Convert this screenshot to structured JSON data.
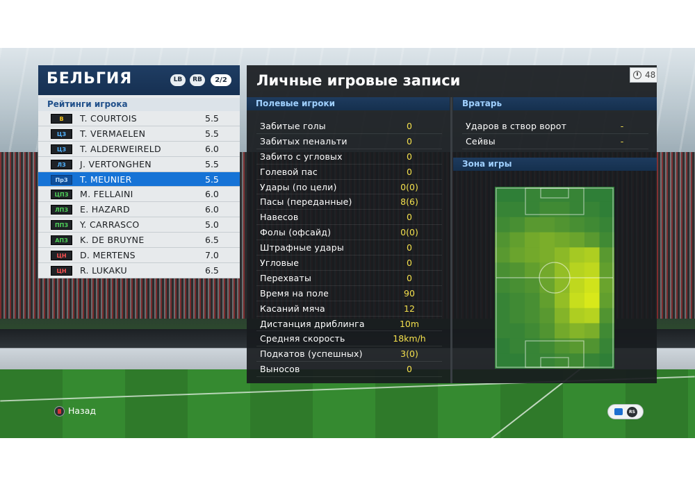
{
  "team": {
    "name": "БЕЛЬГИЯ",
    "lb_label": "LB",
    "rb_label": "RB",
    "page_indicator": "2/2"
  },
  "ratings": {
    "title": "Рейтинги игрока",
    "selected_index": 4,
    "players": [
      {
        "position": "В",
        "position_group": "gk",
        "name": "T. COURTOIS",
        "rating": "5.5"
      },
      {
        "position": "ЦЗ",
        "position_group": "def",
        "name": "T. VERMAELEN",
        "rating": "5.5"
      },
      {
        "position": "ЦЗ",
        "position_group": "def",
        "name": "T. ALDERWEIRELD",
        "rating": "6.0"
      },
      {
        "position": "ЛЗ",
        "position_group": "def",
        "name": "J. VERTONGHEN",
        "rating": "5.5"
      },
      {
        "position": "ПрЗ",
        "position_group": "def",
        "name": "T. MEUNIER",
        "rating": "5.5"
      },
      {
        "position": "ЦПЗ",
        "position_group": "mid",
        "name": "M. FELLAINI",
        "rating": "6.0"
      },
      {
        "position": "ЛПЗ",
        "position_group": "mid",
        "name": "E. HAZARD",
        "rating": "6.0"
      },
      {
        "position": "ППЗ",
        "position_group": "mid",
        "name": "Y. CARRASCO",
        "rating": "5.0"
      },
      {
        "position": "АПЗ",
        "position_group": "mid",
        "name": "K. DE BRUYNE",
        "rating": "6.5"
      },
      {
        "position": "ЦН",
        "position_group": "fwd",
        "name": "D. MERTENS",
        "rating": "7.0"
      },
      {
        "position": "ЦН",
        "position_group": "fwd",
        "name": "R. LUKAKU",
        "rating": "6.5"
      }
    ]
  },
  "records": {
    "title": "Личные игровые записи",
    "timer": "48",
    "field_section": "Полевые игроки",
    "goalkeeper_section": "Вратарь",
    "zone_section": "Зона игры",
    "field_stats": [
      {
        "label": "Забитые голы",
        "value": "0"
      },
      {
        "label": "Забитых пенальти",
        "value": "0"
      },
      {
        "label": "Забито с угловых",
        "value": "0"
      },
      {
        "label": "Голевой пас",
        "value": "0"
      },
      {
        "label": "Удары (по цели)",
        "value": "0(0)"
      },
      {
        "label": "Пасы (переданные)",
        "value": "8(6)"
      },
      {
        "label": "Навесов",
        "value": "0"
      },
      {
        "label": "Фолы (офсайд)",
        "value": "0(0)"
      },
      {
        "label": "Штрафные удары",
        "value": "0"
      },
      {
        "label": "Угловые",
        "value": "0"
      },
      {
        "label": "Перехваты",
        "value": "0"
      },
      {
        "label": "Время на поле",
        "value": "90"
      },
      {
        "label": "Касаний мяча",
        "value": "12"
      },
      {
        "label": "Дистанция дриблинга",
        "value": "10m"
      },
      {
        "label": "Средняя скорость",
        "value": "18km/h"
      },
      {
        "label": "Подкатов (успешных)",
        "value": "3(0)"
      },
      {
        "label": "Выносов",
        "value": "0"
      }
    ],
    "goalkeeper_stats": [
      {
        "label": "Ударов в створ ворот",
        "value": "-"
      },
      {
        "label": "Сейвы",
        "value": "-"
      }
    ]
  },
  "heatmap": {
    "cols": 8,
    "rows": 12,
    "base_color": "#2f7f37",
    "hot_color": "#d8e81a",
    "intensity": [
      [
        0.0,
        0.0,
        0.05,
        0.05,
        0.05,
        0.05,
        0.0,
        0.0
      ],
      [
        0.05,
        0.05,
        0.05,
        0.1,
        0.1,
        0.05,
        0.05,
        0.0
      ],
      [
        0.1,
        0.15,
        0.25,
        0.25,
        0.2,
        0.15,
        0.1,
        0.05
      ],
      [
        0.2,
        0.3,
        0.4,
        0.45,
        0.4,
        0.35,
        0.25,
        0.1
      ],
      [
        0.25,
        0.35,
        0.4,
        0.45,
        0.55,
        0.7,
        0.75,
        0.25
      ],
      [
        0.15,
        0.2,
        0.3,
        0.4,
        0.6,
        0.8,
        0.85,
        0.3
      ],
      [
        0.1,
        0.15,
        0.2,
        0.35,
        0.55,
        0.85,
        0.95,
        0.35
      ],
      [
        0.05,
        0.1,
        0.15,
        0.3,
        0.6,
        0.9,
        1.0,
        0.3
      ],
      [
        0.05,
        0.1,
        0.15,
        0.25,
        0.5,
        0.75,
        0.8,
        0.2
      ],
      [
        0.05,
        0.05,
        0.1,
        0.2,
        0.4,
        0.5,
        0.45,
        0.1
      ],
      [
        0.0,
        0.05,
        0.05,
        0.1,
        0.2,
        0.25,
        0.2,
        0.05
      ],
      [
        0.0,
        0.0,
        0.05,
        0.05,
        0.1,
        0.1,
        0.05,
        0.0
      ]
    ]
  },
  "footer": {
    "back_label": "Назад",
    "back_button_icon": "b-button-icon",
    "chat_icon": "chat-icon",
    "rs_label": "RS"
  }
}
